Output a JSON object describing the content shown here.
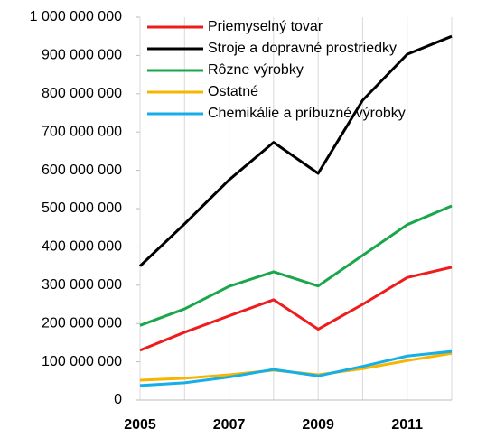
{
  "chart_data": {
    "type": "line",
    "categories": [
      "2005",
      null,
      "2007",
      null,
      "2009",
      null,
      "2011",
      null
    ],
    "series": [
      {
        "name": "Priemyselný tovar",
        "color": "#ee1c1c",
        "values": [
          130000000,
          177000000,
          220000000,
          262000000,
          185000000,
          250000000,
          320000000,
          347000000
        ]
      },
      {
        "name": "Stroje a dopravné prostriedky",
        "color": "#000000",
        "values": [
          350000000,
          460000000,
          575000000,
          673000000,
          592000000,
          783000000,
          903000000,
          950000000
        ]
      },
      {
        "name": "Rôzne výrobky",
        "color": "#1aa64a",
        "values": [
          195000000,
          238000000,
          297000000,
          335000000,
          298000000,
          378000000,
          458000000,
          507000000
        ]
      },
      {
        "name": "Ostatné",
        "color": "#f7b500",
        "values": [
          52000000,
          57000000,
          66000000,
          78000000,
          66000000,
          82000000,
          103000000,
          122000000
        ]
      },
      {
        "name": "Chemikálie a príbuzné výrobky",
        "color": "#14aee8",
        "values": [
          38000000,
          45000000,
          60000000,
          80000000,
          63000000,
          88000000,
          115000000,
          127000000
        ]
      }
    ],
    "ylim": [
      0,
      1000000000
    ],
    "yticks": [
      0,
      {
        "value": 100000000,
        "label": "100 000 000"
      },
      {
        "value": 200000000,
        "label": "200 000 000"
      },
      {
        "value": 300000000,
        "label": "300 000 000"
      },
      {
        "value": 400000000,
        "label": "400 000 000"
      },
      {
        "value": 500000000,
        "label": "500 000 000"
      },
      {
        "value": 600000000,
        "label": "600 000 000"
      },
      {
        "value": 700000000,
        "label": "700 000 000"
      },
      {
        "value": 800000000,
        "label": "800 000 000"
      },
      {
        "value": 900000000,
        "label": "900 000 000"
      },
      {
        "value": 1000000000,
        "label": "1 000 000 000"
      }
    ],
    "grid": true,
    "legend": "top"
  }
}
